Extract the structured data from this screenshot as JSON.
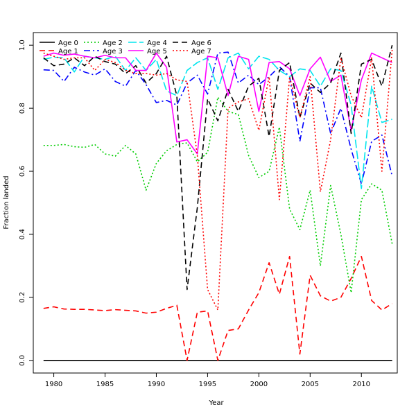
{
  "chart_data": {
    "type": "line",
    "xlabel": "Year",
    "ylabel": "Fraction landed",
    "xlim": [
      1978,
      2013.5
    ],
    "ylim": [
      -0.04,
      1.04
    ],
    "xticks": [
      1980,
      1985,
      1990,
      1995,
      2000,
      2005,
      2010
    ],
    "yticks": [
      0.0,
      0.2,
      0.4,
      0.6,
      0.8,
      1.0
    ],
    "ytick_labels": [
      "0.0",
      "0.2",
      "0.4",
      "0.6",
      "0.8",
      "1.0"
    ],
    "legend_position": "top-left",
    "x": [
      1979,
      1980,
      1981,
      1982,
      1983,
      1984,
      1985,
      1986,
      1987,
      1988,
      1989,
      1990,
      1991,
      1992,
      1993,
      1994,
      1995,
      1996,
      1997,
      1998,
      1999,
      2000,
      2001,
      2002,
      2003,
      2004,
      2005,
      2006,
      2007,
      2008,
      2009,
      2010,
      2011,
      2012,
      2013
    ],
    "series": [
      {
        "name": "Age 0",
        "color": "#000000",
        "dash": "",
        "values": [
          0,
          0,
          0,
          0,
          0,
          0,
          0,
          0,
          0,
          0,
          0,
          0,
          0,
          0,
          0,
          0,
          0,
          0,
          0,
          0,
          0,
          0,
          0,
          0,
          0,
          0,
          0,
          0,
          0,
          0,
          0,
          0,
          0,
          0,
          0
        ]
      },
      {
        "name": "Age 1",
        "color": "#ff0000",
        "dash": "8,5",
        "values": [
          0.165,
          0.17,
          0.163,
          0.162,
          0.162,
          0.16,
          0.158,
          0.161,
          0.159,
          0.157,
          0.15,
          0.153,
          0.165,
          0.175,
          0.0,
          0.153,
          0.157,
          0.0,
          0.095,
          0.1,
          0.16,
          0.215,
          0.31,
          0.21,
          0.33,
          0.02,
          0.27,
          0.205,
          0.188,
          0.2,
          0.26,
          0.33,
          0.19,
          0.16,
          0.18
        ]
      },
      {
        "name": "Age 2",
        "color": "#00cd00",
        "dash": "2,3",
        "values": [
          0.682,
          0.682,
          0.685,
          0.678,
          0.676,
          0.685,
          0.655,
          0.648,
          0.682,
          0.655,
          0.54,
          0.625,
          0.665,
          0.685,
          0.69,
          0.63,
          0.66,
          0.835,
          0.79,
          0.78,
          0.65,
          0.58,
          0.6,
          0.74,
          0.48,
          0.415,
          0.54,
          0.3,
          0.555,
          0.4,
          0.215,
          0.51,
          0.56,
          0.54,
          0.37
        ]
      },
      {
        "name": "Age 3",
        "color": "#0000ff",
        "dash": "9,4,2,4",
        "values": [
          0.922,
          0.92,
          0.885,
          0.93,
          0.915,
          0.905,
          0.925,
          0.885,
          0.87,
          0.92,
          0.875,
          0.818,
          0.825,
          0.81,
          0.88,
          0.905,
          0.845,
          0.975,
          0.978,
          0.88,
          0.905,
          0.875,
          0.9,
          0.932,
          0.9,
          0.695,
          0.865,
          0.865,
          0.72,
          0.8,
          0.67,
          0.56,
          0.695,
          0.715,
          0.585
        ]
      },
      {
        "name": "Age 4",
        "color": "#00e5ee",
        "dash": "12,4",
        "values": [
          0.955,
          0.962,
          0.96,
          0.915,
          0.965,
          0.96,
          0.955,
          0.965,
          0.92,
          0.96,
          0.92,
          0.955,
          0.855,
          0.84,
          0.92,
          0.945,
          0.96,
          0.86,
          0.96,
          0.975,
          0.925,
          0.965,
          0.955,
          0.92,
          0.9,
          0.925,
          0.92,
          0.87,
          0.925,
          0.92,
          0.81,
          0.545,
          0.87,
          0.755,
          0.765
        ]
      },
      {
        "name": "Age 5",
        "color": "#ff00ff",
        "dash": "",
        "values": [
          0.965,
          0.975,
          0.968,
          0.972,
          0.965,
          0.96,
          0.968,
          0.96,
          0.96,
          0.92,
          0.92,
          0.975,
          0.93,
          0.693,
          0.7,
          0.655,
          0.965,
          0.96,
          0.84,
          0.965,
          0.955,
          0.79,
          0.945,
          0.948,
          0.925,
          0.84,
          0.925,
          0.962,
          0.885,
          0.905,
          0.73,
          0.89,
          0.975,
          0.96,
          0.945
        ]
      },
      {
        "name": "Age 6",
        "color": "#000000",
        "dash": "8,5",
        "values": [
          0.96,
          0.935,
          0.94,
          0.96,
          0.935,
          0.965,
          0.948,
          0.94,
          0.91,
          0.935,
          0.88,
          0.91,
          0.965,
          0.84,
          0.225,
          0.485,
          0.83,
          0.76,
          0.86,
          0.79,
          0.87,
          0.895,
          0.71,
          0.92,
          0.945,
          0.77,
          0.88,
          0.85,
          0.88,
          0.975,
          0.72,
          0.94,
          0.955,
          0.87,
          1.0
        ]
      },
      {
        "name": "Age 7",
        "color": "#ff0000",
        "dash": "2,3",
        "values": [
          0.975,
          0.965,
          0.955,
          0.96,
          0.96,
          0.92,
          0.955,
          0.945,
          0.92,
          0.91,
          0.91,
          0.905,
          0.91,
          0.89,
          0.885,
          0.65,
          0.225,
          0.16,
          0.8,
          0.82,
          0.83,
          0.73,
          0.9,
          0.51,
          0.9,
          0.77,
          0.9,
          0.535,
          0.7,
          0.96,
          0.84,
          0.77,
          0.96,
          0.6,
          0.985
        ]
      }
    ]
  }
}
